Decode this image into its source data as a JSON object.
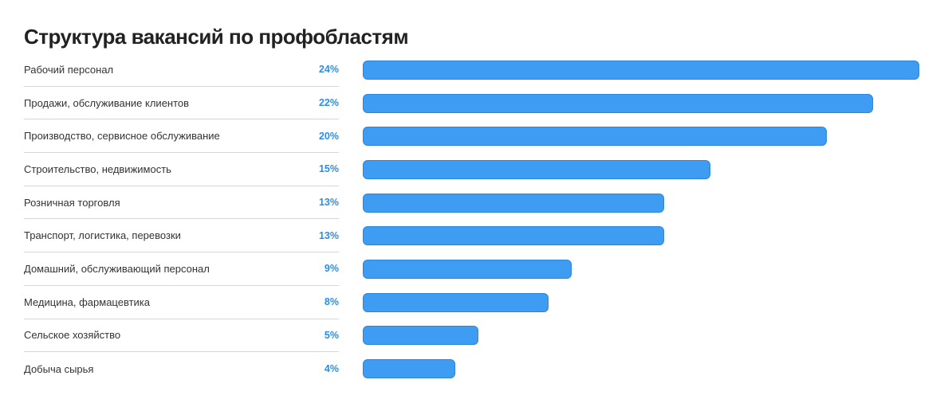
{
  "chart_data": {
    "type": "bar",
    "title": "Структура вакансий по профобластям",
    "categories": [
      "Рабочий персонал",
      "Продажи, обслуживание клиентов",
      "Производство, сервисное обслуживание",
      "Строительство, недвижимость",
      "Розничная торговля",
      "Транспорт, логистика, перевозки",
      "Домашний, обслуживающий персонал",
      "Медицина, фармацевтика",
      "Сельское хозяйство",
      "Добыча сырья"
    ],
    "values": [
      24,
      22,
      20,
      15,
      13,
      13,
      9,
      8,
      5,
      4
    ],
    "data_labels": [
      "24%",
      "22%",
      "20%",
      "15%",
      "13%",
      "13%",
      "9%",
      "8%",
      "5%",
      "4%"
    ],
    "xlim": [
      0,
      24
    ],
    "grid": false,
    "colors": {
      "bar": "#3e9df2",
      "bar_border": "#2a86d8",
      "data_label": "#2b8ee6",
      "divider": "#d6d6d6"
    }
  }
}
